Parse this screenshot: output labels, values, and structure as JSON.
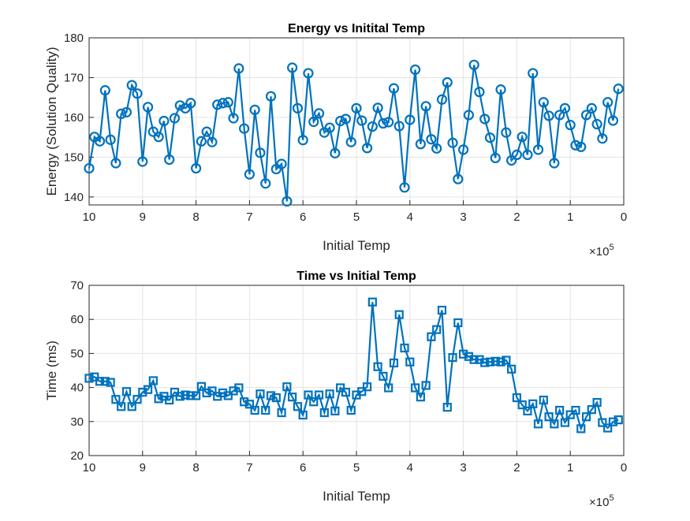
{
  "chart_data": [
    {
      "type": "line",
      "title": "Energy vs Initital Temp",
      "xlabel": "Initial Temp",
      "ylabel": "Energy (Solution Quality)",
      "x_exponent": {
        "base": "×10",
        "power": "5"
      },
      "x": [
        10,
        9.9,
        9.8,
        9.7,
        9.6,
        9.5,
        9.4,
        9.3,
        9.2,
        9.1,
        9,
        8.9,
        8.8,
        8.7,
        8.6,
        8.5,
        8.4,
        8.3,
        8.2,
        8.1,
        8,
        7.9,
        7.8,
        7.7,
        7.6,
        7.5,
        7.4,
        7.3,
        7.2,
        7.1,
        7,
        6.9,
        6.8,
        6.7,
        6.6,
        6.5,
        6.4,
        6.3,
        6.2,
        6.1,
        6,
        5.9,
        5.8,
        5.7,
        5.6,
        5.5,
        5.4,
        5.3,
        5.2,
        5.1,
        5,
        4.9,
        4.8,
        4.7,
        4.6,
        4.5,
        4.4,
        4.3,
        4.2,
        4.1,
        4,
        3.9,
        3.8,
        3.7,
        3.6,
        3.5,
        3.4,
        3.3,
        3.2,
        3.1,
        3,
        2.9,
        2.8,
        2.7,
        2.6,
        2.5,
        2.4,
        2.3,
        2.2,
        2.1,
        2,
        1.9,
        1.8,
        1.7,
        1.6,
        1.5,
        1.4,
        1.3,
        1.2,
        1.1,
        1,
        0.9,
        0.8,
        0.7,
        0.6,
        0.5,
        0.4,
        0.3,
        0.2,
        0.1
      ],
      "series": [
        {
          "color": "#0072bd",
          "marker": "o",
          "values": [
            147.2,
            155.1,
            154.0,
            166.8,
            154.4,
            148.5,
            160.9,
            161.3,
            168.1,
            166.0,
            148.9,
            162.6,
            156.4,
            155.1,
            159.1,
            149.4,
            159.8,
            163.0,
            162.3,
            163.6,
            147.2,
            154.0,
            156.4,
            153.8,
            163.2,
            163.6,
            163.8,
            159.8,
            172.3,
            157.2,
            145.7,
            161.9,
            151.1,
            143.4,
            165.3,
            147.0,
            148.3,
            138.9,
            172.5,
            162.3,
            154.3,
            171.1,
            158.9,
            161.0,
            156.2,
            157.4,
            151.0,
            159.1,
            159.6,
            153.8,
            162.3,
            159.2,
            152.3,
            157.7,
            162.4,
            158.5,
            158.8,
            167.3,
            157.8,
            142.4,
            159.4,
            172.0,
            153.3,
            162.8,
            154.5,
            152.2,
            164.5,
            168.8,
            153.6,
            144.5,
            151.9,
            160.6,
            173.2,
            166.4,
            159.6,
            154.9,
            149.8,
            167.0,
            156.2,
            149.2,
            150.6,
            155.1,
            150.6,
            171.1,
            151.9,
            163.8,
            160.4,
            148.5,
            160.6,
            162.3,
            158.1,
            153.0,
            152.6,
            160.6,
            162.3,
            158.3,
            154.7,
            163.8,
            159.2,
            167.2
          ]
        }
      ],
      "xlim": [
        10,
        0
      ],
      "xticks": [
        10,
        9,
        8,
        7,
        6,
        5,
        4,
        3,
        2,
        1,
        0
      ],
      "ylim": [
        138,
        180
      ],
      "yticks": [
        140,
        150,
        160,
        170,
        180
      ],
      "grid": true
    },
    {
      "type": "line",
      "title": "Time vs Initial Temp",
      "xlabel": "Initial Temp",
      "ylabel": "Time (ms)",
      "x_exponent": {
        "base": "×10",
        "power": "5"
      },
      "x": [
        10,
        9.9,
        9.8,
        9.7,
        9.6,
        9.5,
        9.4,
        9.3,
        9.2,
        9.1,
        9,
        8.9,
        8.8,
        8.7,
        8.6,
        8.5,
        8.4,
        8.3,
        8.2,
        8.1,
        8,
        7.9,
        7.8,
        7.7,
        7.6,
        7.5,
        7.4,
        7.3,
        7.2,
        7.1,
        7,
        6.9,
        6.8,
        6.7,
        6.6,
        6.5,
        6.4,
        6.3,
        6.2,
        6.1,
        6,
        5.9,
        5.8,
        5.7,
        5.6,
        5.5,
        5.4,
        5.3,
        5.2,
        5.1,
        5,
        4.9,
        4.8,
        4.7,
        4.6,
        4.5,
        4.4,
        4.3,
        4.2,
        4.1,
        4,
        3.9,
        3.8,
        3.7,
        3.6,
        3.5,
        3.4,
        3.3,
        3.2,
        3.1,
        3,
        2.9,
        2.8,
        2.7,
        2.6,
        2.5,
        2.4,
        2.3,
        2.2,
        2.1,
        2,
        1.9,
        1.8,
        1.7,
        1.6,
        1.5,
        1.4,
        1.3,
        1.2,
        1.1,
        1,
        0.9,
        0.8,
        0.7,
        0.6,
        0.5,
        0.4,
        0.3,
        0.2,
        0.1
      ],
      "series": [
        {
          "color": "#0072bd",
          "marker": "s",
          "values": [
            42.7,
            43.1,
            41.8,
            41.8,
            41.5,
            36.5,
            34.4,
            38.8,
            34.4,
            36.5,
            38.6,
            39.4,
            42.0,
            36.7,
            37.4,
            36.3,
            38.6,
            37.4,
            37.8,
            37.6,
            37.6,
            40.3,
            38.4,
            39.0,
            37.4,
            38.4,
            37.6,
            39.0,
            39.9,
            35.8,
            35.1,
            33.3,
            38.1,
            33.3,
            37.6,
            37.0,
            32.6,
            40.2,
            37.2,
            34.4,
            31.9,
            37.8,
            35.8,
            37.8,
            32.6,
            38.1,
            33.1,
            39.9,
            38.6,
            33.3,
            37.8,
            38.8,
            40.2,
            65.1,
            46.1,
            43.3,
            39.9,
            47.2,
            61.4,
            51.6,
            47.5,
            39.9,
            37.2,
            40.6,
            54.9,
            57.0,
            62.7,
            34.2,
            48.8,
            59.0,
            49.8,
            49.1,
            48.2,
            48.2,
            47.3,
            47.5,
            47.7,
            47.5,
            48.0,
            45.4,
            37.0,
            34.9,
            33.1,
            35.2,
            29.3,
            36.3,
            31.4,
            29.3,
            33.3,
            29.7,
            32.0,
            33.3,
            27.9,
            31.4,
            33.5,
            35.6,
            29.7,
            28.1,
            29.9,
            30.5
          ]
        }
      ],
      "xlim": [
        10,
        0
      ],
      "xticks": [
        10,
        9,
        8,
        7,
        6,
        5,
        4,
        3,
        2,
        1,
        0
      ],
      "ylim": [
        20,
        70
      ],
      "yticks": [
        20,
        30,
        40,
        50,
        60,
        70
      ],
      "grid": true
    }
  ]
}
